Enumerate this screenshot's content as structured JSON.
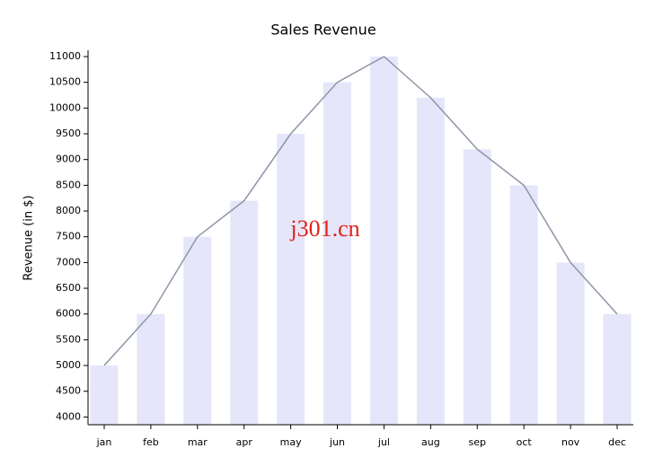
{
  "chart_data": {
    "type": "bar",
    "title": "Sales Revenue",
    "y_label": "Revenue (in $)",
    "annotation": "j301.cn",
    "categories": [
      "jan",
      "feb",
      "mar",
      "apr",
      "may",
      "jun",
      "jul",
      "aug",
      "sep",
      "oct",
      "nov",
      "dec"
    ],
    "values": [
      5000,
      6000,
      7500,
      8200,
      9500,
      10500,
      11000,
      10200,
      9200,
      8500,
      7000,
      6000
    ],
    "color": "#e6e6fa",
    "line": true,
    "line_color": "#8f94a8",
    "ylim": [
      3850,
      11000
    ],
    "yticks": [
      4000,
      4500,
      5000,
      5500,
      6000,
      6500,
      7000,
      7500,
      8000,
      8500,
      9000,
      9500,
      10000,
      10500,
      11000
    ],
    "grid": false
  }
}
